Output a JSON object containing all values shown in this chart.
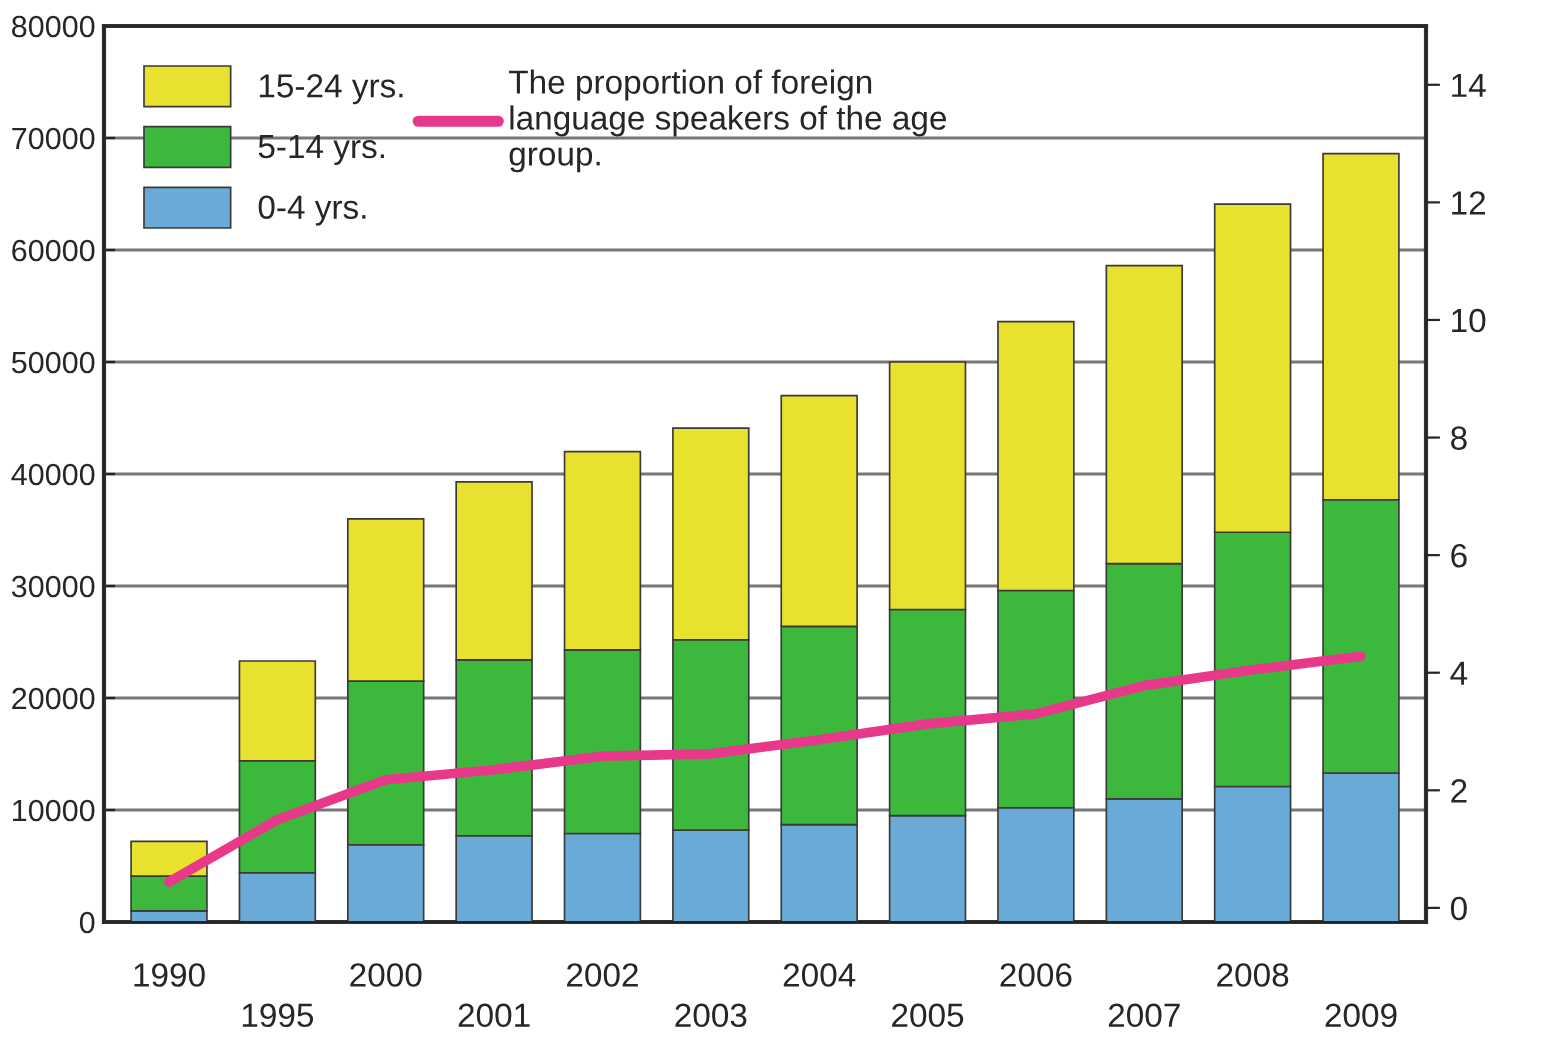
{
  "chart_data": {
    "type": "bar",
    "stacked": true,
    "categories": [
      "1990",
      "1995",
      "2000",
      "2001",
      "2002",
      "2003",
      "2004",
      "2005",
      "2006",
      "2007",
      "2008",
      "2009"
    ],
    "series": [
      {
        "name": "0-4 yrs.",
        "color": "#6aaad6",
        "values": [
          1000,
          4400,
          6900,
          7700,
          7900,
          8200,
          8700,
          9500,
          10200,
          11000,
          12100,
          13300
        ]
      },
      {
        "name": "5-14 yrs.",
        "color": "#3cb93c",
        "values": [
          3100,
          10000,
          14600,
          15700,
          16400,
          17000,
          17700,
          18400,
          19400,
          21000,
          22700,
          24400
        ]
      },
      {
        "name": "15-24 yrs.",
        "color": "#e8e22e",
        "values": [
          3100,
          8900,
          14500,
          15900,
          17700,
          18900,
          20600,
          22100,
          24000,
          26600,
          29300,
          30900
        ]
      },
      {
        "name": "The proportion of foreign\nlanguage speakers of the age\ngroup.",
        "type": "line",
        "axis": "y2",
        "color": "#e8388a",
        "values": [
          0.44,
          1.5,
          2.18,
          2.35,
          2.58,
          2.62,
          2.86,
          3.13,
          3.3,
          3.78,
          4.05,
          4.28
        ]
      }
    ],
    "ylim": [
      0,
      80000
    ],
    "yticks": [
      0,
      10000,
      20000,
      30000,
      40000,
      50000,
      60000,
      70000,
      80000
    ],
    "y2lim": [
      -0.24,
      15
    ],
    "y2ticks": [
      0,
      2,
      4,
      6,
      8,
      10,
      12,
      14
    ],
    "grid": "y",
    "legend": "top left",
    "marker": "none",
    "line_style": "solid"
  }
}
